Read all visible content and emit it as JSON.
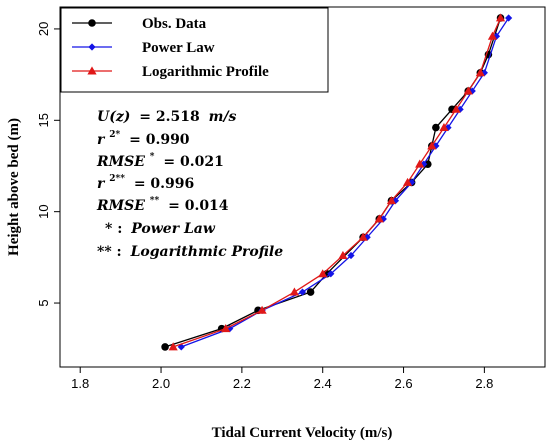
{
  "chart_data": {
    "type": "line",
    "xlabel": "Tidal Current Velocity (m/s)",
    "ylabel": "Height above bed (m)",
    "xlim": [
      1.75,
      2.95
    ],
    "ylim": [
      1.5,
      21.2
    ],
    "xticks": [
      1.8,
      2.0,
      2.2,
      2.4,
      2.6,
      2.8
    ],
    "yticks": [
      5,
      10,
      15,
      20
    ],
    "legend_position": "top-left",
    "series": [
      {
        "name": "Obs. Data",
        "color": "#000000",
        "marker": "circle",
        "x": [
          2.01,
          2.15,
          2.24,
          2.37,
          2.41,
          2.5,
          2.54,
          2.57,
          2.62,
          2.66,
          2.67,
          2.68,
          2.72,
          2.76,
          2.79,
          2.81,
          2.84
        ],
        "y": [
          2.6,
          3.6,
          4.6,
          5.6,
          6.6,
          8.6,
          9.6,
          10.6,
          11.6,
          12.6,
          13.6,
          14.6,
          15.6,
          16.6,
          17.6,
          18.6,
          20.6
        ]
      },
      {
        "name": "Power Law",
        "color": "#1414e6",
        "marker": "diamond",
        "x": [
          2.05,
          2.17,
          2.25,
          2.35,
          2.42,
          2.47,
          2.51,
          2.55,
          2.58,
          2.62,
          2.65,
          2.68,
          2.71,
          2.74,
          2.77,
          2.8,
          2.83,
          2.86
        ],
        "y": [
          2.6,
          3.6,
          4.6,
          5.6,
          6.6,
          7.6,
          8.6,
          9.6,
          10.6,
          11.6,
          12.6,
          13.6,
          14.6,
          15.6,
          16.6,
          17.6,
          19.6,
          20.6
        ]
      },
      {
        "name": "Logarithmic Profile",
        "color": "#e01818",
        "marker": "triangle",
        "x": [
          2.03,
          2.16,
          2.25,
          2.33,
          2.4,
          2.45,
          2.5,
          2.54,
          2.57,
          2.61,
          2.64,
          2.67,
          2.7,
          2.73,
          2.76,
          2.79,
          2.82,
          2.84
        ],
        "y": [
          2.6,
          3.6,
          4.6,
          5.6,
          6.6,
          7.6,
          8.6,
          9.6,
          10.6,
          11.6,
          12.6,
          13.6,
          14.6,
          15.6,
          16.6,
          17.6,
          19.6,
          20.6
        ]
      }
    ],
    "annotations": [
      "U(z) = 2.518 m/s",
      "r2* = 0.990",
      "RMSE* = 0.021",
      "r2** = 0.996",
      "RMSE** = 0.014",
      "* : Power Law",
      "** : Logarithmic Profile"
    ]
  },
  "stats": {
    "u_lhs": "U(z)",
    "u_rhs": "= 2.518",
    "u_unit": "m/s",
    "r2_sym": "r",
    "r2_sup1": "2*",
    "r2_val1": "= 0.990",
    "rmse_sym": "RMSE",
    "rmse_sup1": "*",
    "rmse_val1": "= 0.021",
    "r2_sup2": "2**",
    "r2_val2": "= 0.996",
    "rmse_sup2": "**",
    "rmse_val2": "= 0.014",
    "key1_mark": "* :",
    "key1_text": "Power Law",
    "key2_mark": "** :",
    "key2_text": "Logarithmic Profile"
  }
}
